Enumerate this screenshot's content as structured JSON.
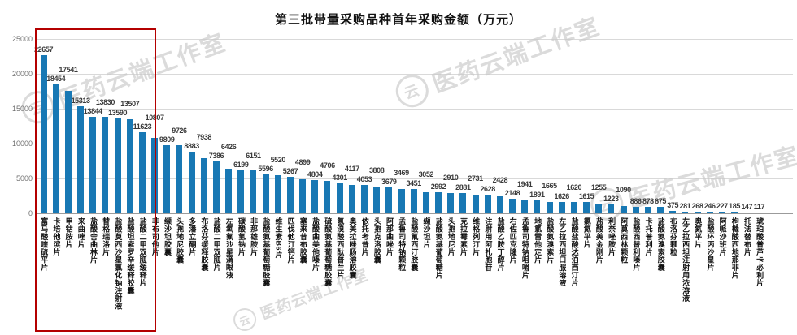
{
  "watermark": {
    "text": "医药云端工作室",
    "logo_glyph": "云"
  },
  "highlight_box": {
    "start_index": 0,
    "end_index": 8,
    "color": "#b40000"
  },
  "chart_data": {
    "type": "bar",
    "title": "第三批带量采购品种首年采购金额（万元）",
    "unit": "万元",
    "bar_color": "#1878b4",
    "grid": true,
    "ylim": [
      0,
      25000
    ],
    "yticks": [
      0,
      5000,
      10000,
      15000,
      20000,
      25000
    ],
    "categories": [
      "富马酸喹硫平片",
      "卡培他滨片",
      "甲钴胺片",
      "来曲唑片",
      "盐酸舍曲林片",
      "替格瑞洛片",
      "盐酸莫西沙星氯化钠注射液",
      "盐酸坦索罗辛缓释胶囊",
      "盐酸二甲双胍缓释片",
      "非布司他片",
      "缬沙坦胶囊",
      "头孢地尼胶囊",
      "多潘立酮片",
      "布洛芬缓释胶囊",
      "盐酸二甲双胍片",
      "左氧氟沙星滴眼液",
      "碳酸氢钠片",
      "非那雄胺片",
      "盐酸氨基葡萄糖胶囊",
      "维生素B6片",
      "匹伐他汀钙片",
      "塞来昔布胶囊",
      "盐酸曲美他嗪片",
      "硫酸氨基葡萄糖胶囊",
      "氢溴酸西酞普兰片",
      "奥美拉唑肠溶胶囊",
      "依托考昔片",
      "头孢克洛胶囊",
      "阿那曲唑片",
      "孟鲁司特钠颗粒",
      "盐酸氟西汀胶囊",
      "缬沙坦片",
      "盐酸氨基葡萄糖片",
      "头孢地尼片",
      "克拉霉素片",
      "维格列汀片",
      "注射用阿扎胞苷",
      "盐酸乙胺丁醇片",
      "右佐匹克隆片",
      "孟鲁司特钠咀嚼片",
      "地氯雷他定片",
      "盐酸氨溴索片",
      "左乙拉西坦口服溶液",
      "盐酸盐酸达泊西汀片",
      "氯氮平片",
      "盐酸美金刚片",
      "利奈唑胺片",
      "阿莫西林颗粒",
      "盐酸西替利嗪片",
      "卡托普利片",
      "盐酸氨溴索胶囊",
      "布洛芬颗粒",
      "左乙拉西坦注射用浓溶液",
      "奥氮平片",
      "盐酸环丙沙星片",
      "阿哌沙班片",
      "枸橼酸西地那非片",
      "托法替布片",
      "琥珀酸普芦卡必利片"
    ],
    "values": [
      22657,
      18454,
      17541,
      15313,
      13844,
      13830,
      13590,
      13507,
      11623,
      10807,
      9809,
      9726,
      8883,
      7938,
      7386,
      6426,
      6199,
      6151,
      5596,
      5520,
      5267,
      4899,
      4804,
      4706,
      4301,
      4117,
      4053,
      3808,
      3679,
      3469,
      3451,
      3052,
      2992,
      2910,
      2881,
      2731,
      2628,
      2428,
      2148,
      1941,
      1891,
      1665,
      1626,
      1620,
      1615,
      1255,
      1223,
      1090,
      886,
      878,
      875,
      375,
      281,
      268,
      246,
      227,
      185,
      147,
      117
    ],
    "legend": null,
    "grid_color": "#d9d9d9"
  }
}
